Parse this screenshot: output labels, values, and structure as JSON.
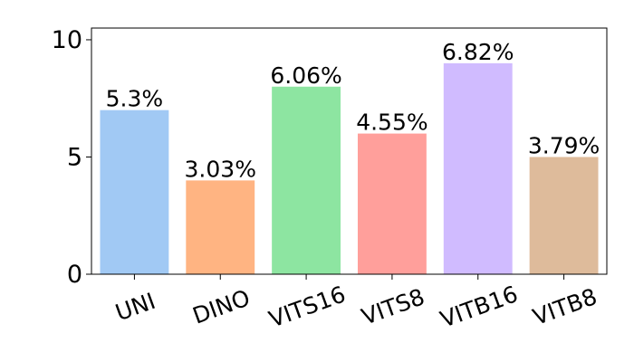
{
  "chart_data": {
    "type": "bar",
    "title": "",
    "xlabel": "",
    "ylabel": "",
    "categories": [
      "UNI",
      "DINO",
      "VITS16",
      "VITS8",
      "VITB16",
      "VITB8"
    ],
    "values": [
      7,
      4,
      8,
      6,
      9,
      5
    ],
    "data_labels": [
      "5.3%",
      "3.03%",
      "6.06%",
      "4.55%",
      "6.82%",
      "3.79%"
    ],
    "colors": [
      "#a1c9f4",
      "#ffb482",
      "#8de5a1",
      "#ff9f9b",
      "#d0bbff",
      "#debb9b"
    ],
    "ylim": [
      0,
      10.5
    ],
    "yticks": [
      0,
      5,
      10
    ],
    "x_tick_rotation_deg": -20,
    "grid": false,
    "legend": "none"
  }
}
